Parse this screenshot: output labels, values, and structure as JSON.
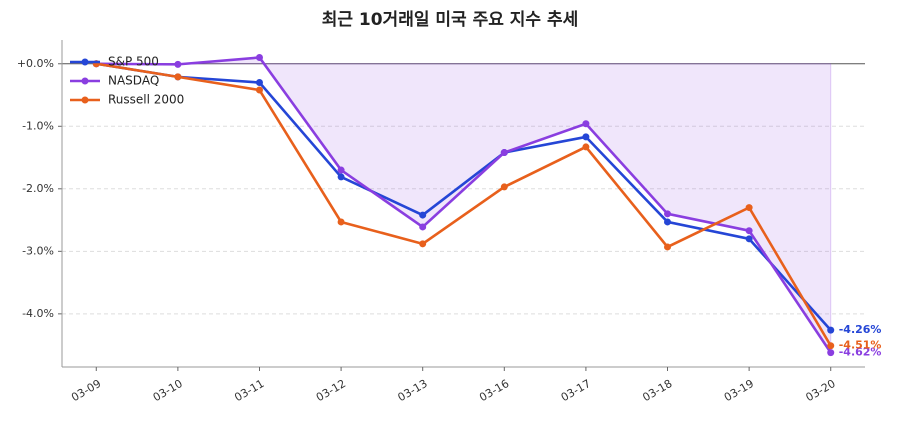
{
  "chart_data": {
    "type": "line",
    "title": "최근 10거래일 미국 주요 지수 추세",
    "categories": [
      "03-09",
      "03-10",
      "03-11",
      "03-12",
      "03-13",
      "03-16",
      "03-17",
      "03-18",
      "03-19",
      "03-20"
    ],
    "series": [
      {
        "name": "S&P 500",
        "color": "#2546d6",
        "values": [
          0.0,
          -0.21,
          -0.3,
          -1.81,
          -2.42,
          -1.42,
          -1.17,
          -2.53,
          -2.8,
          -4.26
        ],
        "end_label": "-4.26%"
      },
      {
        "name": "NASDAQ",
        "color": "#8a3ee0",
        "values": [
          0.0,
          -0.01,
          0.1,
          -1.7,
          -2.61,
          -1.42,
          -0.96,
          -2.4,
          -2.67,
          -4.62
        ],
        "end_label": "-4.62%",
        "fill": true
      },
      {
        "name": "Russell 2000",
        "color": "#e8601c",
        "values": [
          0.0,
          -0.21,
          -0.42,
          -2.53,
          -2.88,
          -1.97,
          -1.33,
          -2.93,
          -2.3,
          -4.51
        ],
        "end_label": "-4.51%"
      }
    ],
    "ylim": [
      -4.85,
      0.38
    ],
    "yticks": [
      {
        "value": 0,
        "label": "+0.0%"
      },
      {
        "value": -1,
        "label": "-1.0%"
      },
      {
        "value": -2,
        "label": "-2.0%"
      },
      {
        "value": -3,
        "label": "-3.0%"
      },
      {
        "value": -4,
        "label": "-4.0%"
      }
    ],
    "grid": true,
    "legend": "upper left"
  }
}
